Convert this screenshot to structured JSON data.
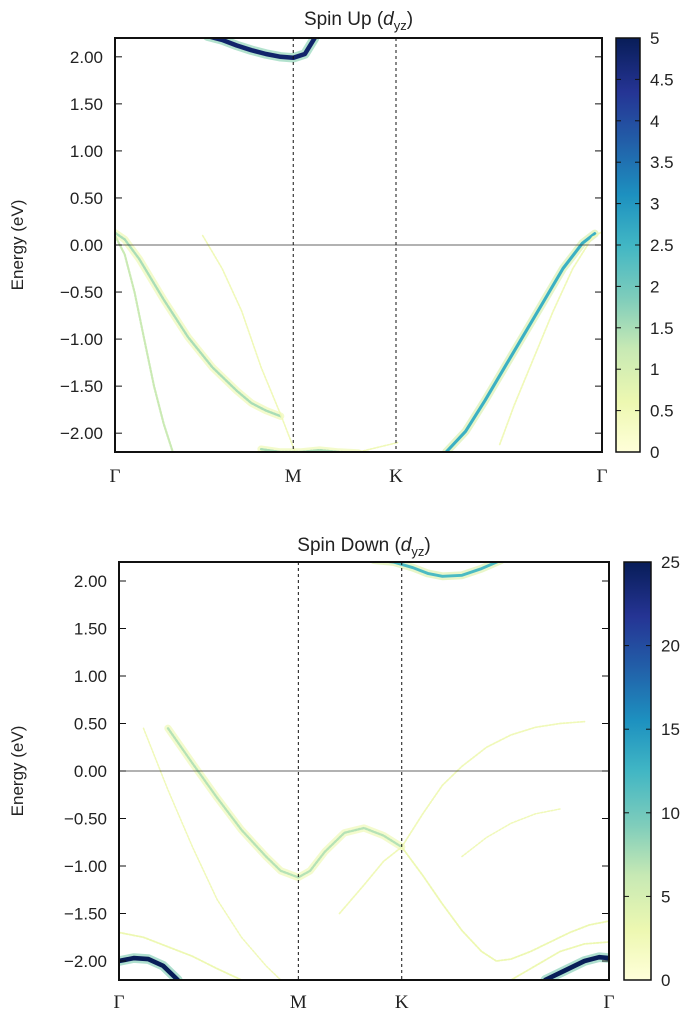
{
  "chart_data": [
    {
      "type": "line",
      "title": "Spin Up",
      "title_var": "d",
      "title_sub": "yz",
      "xlabel": "",
      "ylabel": "Energy (eV)",
      "ylim": [
        -2.2,
        2.2
      ],
      "yticks": [
        "2.00",
        "1.50",
        "1.00",
        "0.50",
        "0.00",
        "−0.50",
        "−1.00",
        "−1.50",
        "−2.00"
      ],
      "ytick_values": [
        2.0,
        1.5,
        1.0,
        0.5,
        0.0,
        -0.5,
        -1.0,
        -1.5,
        -2.0
      ],
      "xticks": [
        {
          "label": "Γ",
          "pos": 0.0
        },
        {
          "label": "M",
          "pos": 0.366
        },
        {
          "label": "K",
          "pos": 0.577
        },
        {
          "label": "Γ",
          "pos": 1.0
        }
      ],
      "fermi_level": 0.0,
      "colorbar": {
        "min": 0,
        "max": 5,
        "ticks": [
          "5",
          "4.5",
          "4",
          "3.5",
          "3",
          "2.5",
          "2",
          "1.5",
          "1",
          "0.5",
          "0"
        ],
        "tick_values": [
          5,
          4.5,
          4,
          3.5,
          3,
          2.5,
          2,
          1.5,
          1,
          0.5,
          0
        ]
      },
      "series": [
        {
          "weight": 4.8,
          "x": [
            0.19,
            0.22,
            0.25,
            0.28,
            0.31,
            0.34,
            0.366,
            0.39,
            0.41
          ],
          "y": [
            2.22,
            2.18,
            2.12,
            2.07,
            2.03,
            2.0,
            1.99,
            2.03,
            2.2
          ]
        },
        {
          "weight": 1.5,
          "x": [
            0.0,
            0.02,
            0.05,
            0.1,
            0.15,
            0.2,
            0.25,
            0.28,
            0.31,
            0.34
          ],
          "y": [
            0.13,
            0.06,
            -0.15,
            -0.58,
            -0.98,
            -1.3,
            -1.55,
            -1.68,
            -1.76,
            -1.82
          ]
        },
        {
          "weight": 1.2,
          "x": [
            0.0,
            0.02,
            0.04,
            0.06,
            0.08,
            0.1,
            0.12
          ],
          "y": [
            0.1,
            -0.1,
            -0.5,
            -1.0,
            -1.5,
            -1.9,
            -2.22
          ]
        },
        {
          "weight": 0.35,
          "x": [
            0.18,
            0.22,
            0.26,
            0.3,
            0.34,
            0.37
          ],
          "y": [
            0.1,
            -0.25,
            -0.7,
            -1.3,
            -1.8,
            -2.2
          ]
        },
        {
          "weight": 0.25,
          "x": [
            0.46,
            0.5,
            0.54,
            0.58
          ],
          "y": [
            -2.22,
            -2.2,
            -2.15,
            -2.1
          ]
        },
        {
          "weight": 2.6,
          "x": [
            0.68,
            0.72,
            0.76,
            0.8,
            0.84,
            0.88,
            0.92,
            0.96,
            0.985
          ],
          "y": [
            -2.2,
            -1.98,
            -1.65,
            -1.3,
            -0.95,
            -0.6,
            -0.25,
            0.02,
            0.12
          ]
        },
        {
          "weight": 0.5,
          "x": [
            0.79,
            0.82,
            0.86,
            0.9,
            0.94,
            0.98,
            1.0
          ],
          "y": [
            -2.12,
            -1.7,
            -1.2,
            -0.7,
            -0.25,
            0.08,
            0.14
          ]
        },
        {
          "weight": 1.5,
          "x": [
            0.3,
            0.34,
            0.38,
            0.42,
            0.46,
            0.5
          ],
          "y": [
            -2.17,
            -2.2,
            -2.2,
            -2.18,
            -2.2,
            -2.21
          ]
        }
      ]
    },
    {
      "type": "line",
      "title": "Spin Down",
      "title_var": "d",
      "title_sub": "yz",
      "xlabel": "",
      "ylabel": "Energy (eV)",
      "ylim": [
        -2.2,
        2.2
      ],
      "yticks": [
        "2.00",
        "1.50",
        "1.00",
        "0.50",
        "0.00",
        "−0.50",
        "−1.00",
        "−1.50",
        "−2.00"
      ],
      "ytick_values": [
        2.0,
        1.5,
        1.0,
        0.5,
        0.0,
        -0.5,
        -1.0,
        -1.5,
        -2.0
      ],
      "xticks": [
        {
          "label": "Γ",
          "pos": 0.0
        },
        {
          "label": "M",
          "pos": 0.366
        },
        {
          "label": "K",
          "pos": 0.577
        },
        {
          "label": "Γ",
          "pos": 1.0
        }
      ],
      "fermi_level": 0.0,
      "colorbar": {
        "min": 0,
        "max": 25,
        "ticks": [
          "25",
          "20",
          "15",
          "10",
          "5",
          "0"
        ],
        "tick_values": [
          25,
          20,
          15,
          10,
          5,
          0
        ]
      },
      "series": [
        {
          "weight": 12,
          "x": [
            0.52,
            0.56,
            0.6,
            0.63,
            0.66,
            0.7,
            0.74,
            0.78
          ],
          "y": [
            2.22,
            2.2,
            2.14,
            2.08,
            2.05,
            2.06,
            2.13,
            2.22
          ]
        },
        {
          "weight": 7,
          "x": [
            0.1,
            0.15,
            0.2,
            0.25,
            0.3,
            0.33,
            0.366,
            0.39,
            0.42,
            0.46,
            0.5,
            0.54,
            0.577
          ],
          "y": [
            0.45,
            0.08,
            -0.28,
            -0.62,
            -0.9,
            -1.05,
            -1.12,
            -1.05,
            -0.85,
            -0.65,
            -0.6,
            -0.68,
            -0.8
          ]
        },
        {
          "weight": 3,
          "x": [
            0.577,
            0.62,
            0.66,
            0.7,
            0.74,
            0.77,
            0.8,
            0.84,
            0.88,
            0.92,
            0.96,
            1.0
          ],
          "y": [
            -0.8,
            -1.1,
            -1.4,
            -1.68,
            -1.9,
            -2.0,
            -1.98,
            -1.9,
            -1.8,
            -1.7,
            -1.62,
            -1.58
          ]
        },
        {
          "weight": 2.5,
          "x": [
            0.45,
            0.5,
            0.54,
            0.577,
            0.62,
            0.66,
            0.7,
            0.75,
            0.8,
            0.85,
            0.9,
            0.95
          ],
          "y": [
            -1.5,
            -1.2,
            -0.95,
            -0.8,
            -0.45,
            -0.15,
            0.05,
            0.25,
            0.38,
            0.46,
            0.5,
            0.52
          ]
        },
        {
          "weight": 1,
          "x": [
            0.05,
            0.1,
            0.15,
            0.2,
            0.25,
            0.3,
            0.33
          ],
          "y": [
            0.45,
            -0.2,
            -0.8,
            -1.35,
            -1.75,
            -2.05,
            -2.2
          ]
        },
        {
          "weight": 1,
          "x": [
            0.7,
            0.75,
            0.8,
            0.85,
            0.9
          ],
          "y": [
            -0.9,
            -0.7,
            -0.55,
            -0.45,
            -0.4
          ]
        },
        {
          "weight": 25,
          "x": [
            0.0,
            0.03,
            0.06,
            0.09,
            0.12
          ],
          "y": [
            -2.0,
            -1.97,
            -1.98,
            -2.05,
            -2.2
          ]
        },
        {
          "weight": 25,
          "x": [
            0.87,
            0.91,
            0.95,
            0.98,
            1.0
          ],
          "y": [
            -2.2,
            -2.1,
            -2.0,
            -1.96,
            -1.97
          ]
        },
        {
          "weight": 3,
          "x": [
            0.0,
            0.05,
            0.1,
            0.15,
            0.2,
            0.25
          ],
          "y": [
            -1.7,
            -1.75,
            -1.85,
            -1.95,
            -2.08,
            -2.2
          ]
        },
        {
          "weight": 3,
          "x": [
            0.8,
            0.85,
            0.9,
            0.95,
            1.0
          ],
          "y": [
            -2.2,
            -2.05,
            -1.9,
            -1.82,
            -1.8
          ]
        }
      ]
    }
  ]
}
